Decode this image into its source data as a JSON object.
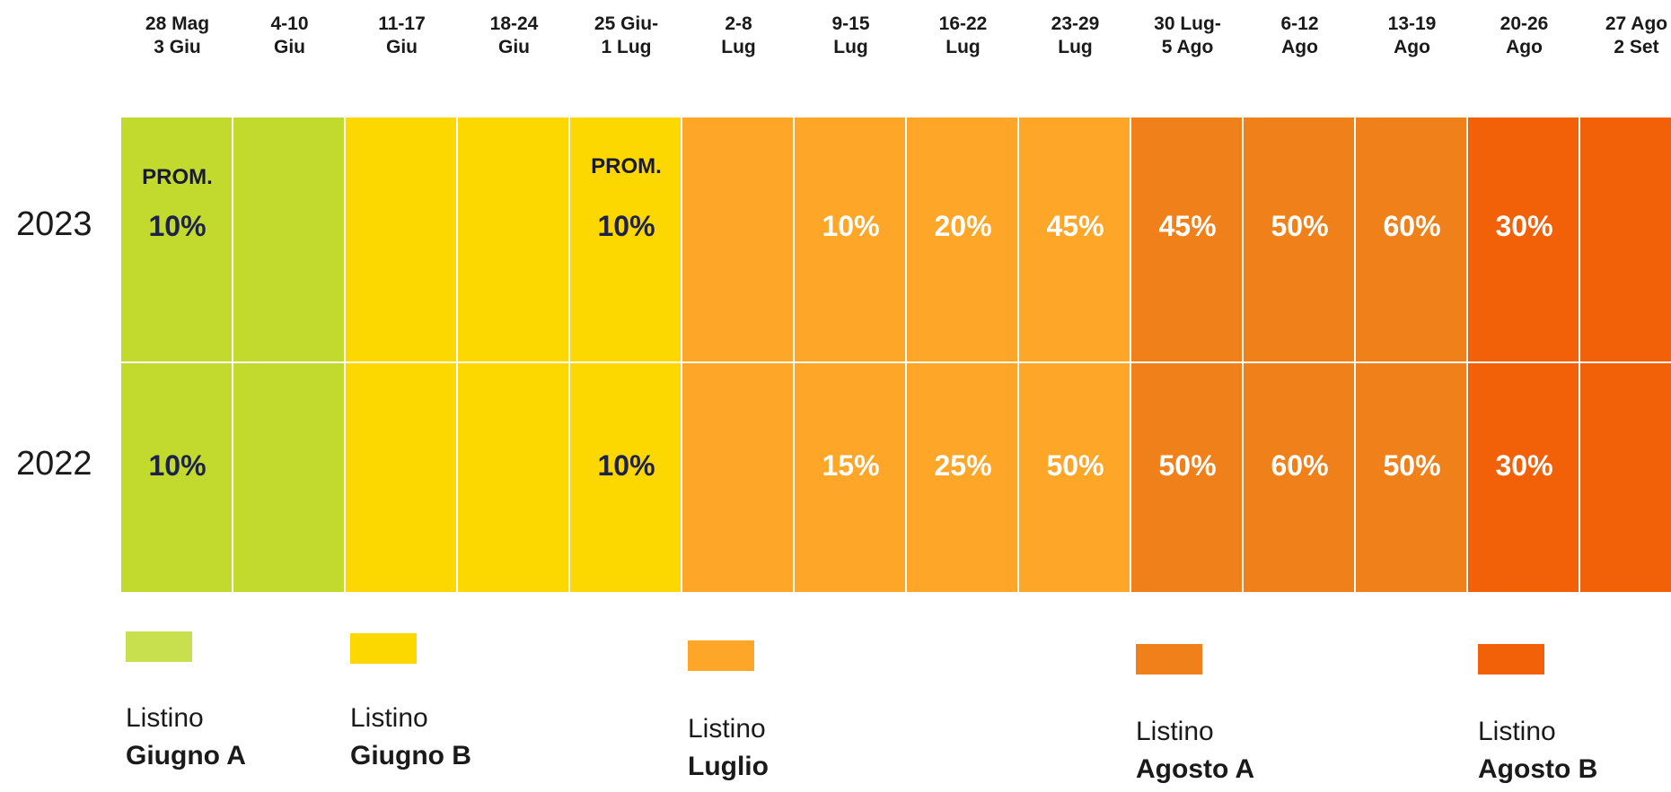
{
  "chart_data": {
    "type": "heatmap",
    "columns": [
      {
        "lines": [
          "28 Mag",
          "3 Giu"
        ],
        "listino": 0
      },
      {
        "lines": [
          "4-10",
          "Giu"
        ],
        "listino": 0
      },
      {
        "lines": [
          "11-17",
          "Giu"
        ],
        "listino": 1
      },
      {
        "lines": [
          "18-24",
          "Giu"
        ],
        "listino": 1
      },
      {
        "lines": [
          "25 Giu-",
          "1 Lug"
        ],
        "listino": 1
      },
      {
        "lines": [
          "2-8",
          "Lug"
        ],
        "listino": 2
      },
      {
        "lines": [
          "9-15",
          "Lug"
        ],
        "listino": 2
      },
      {
        "lines": [
          "16-22",
          "Lug"
        ],
        "listino": 2
      },
      {
        "lines": [
          "23-29",
          "Lug"
        ],
        "listino": 2
      },
      {
        "lines": [
          "30 Lug-",
          "5 Ago"
        ],
        "listino": 3
      },
      {
        "lines": [
          "6-12",
          "Ago"
        ],
        "listino": 3
      },
      {
        "lines": [
          "13-19",
          "Ago"
        ],
        "listino": 3
      },
      {
        "lines": [
          "20-26",
          "Ago"
        ],
        "listino": 4
      },
      {
        "lines": [
          "27 Ago",
          "2 Set"
        ],
        "listino": 4
      }
    ],
    "rows": [
      {
        "year": "2023",
        "values": [
          "10%",
          "",
          "",
          "",
          "10%",
          "",
          "10%",
          "20%",
          "45%",
          "45%",
          "50%",
          "60%",
          "30%",
          ""
        ],
        "prom_label": "PROM.",
        "prom_columns": [
          0,
          4
        ]
      },
      {
        "year": "2022",
        "values": [
          "10%",
          "",
          "",
          "",
          "10%",
          "",
          "15%",
          "25%",
          "50%",
          "50%",
          "60%",
          "50%",
          "30%",
          ""
        ],
        "prom_label": "",
        "prom_columns": []
      }
    ],
    "legend": [
      {
        "prefix": "Listino",
        "name": "Giugno A",
        "color": "#c2da2e",
        "swatch": "#c8e04e"
      },
      {
        "prefix": "Listino",
        "name": "Giugno B",
        "color": "#fdd800",
        "swatch": "#fdd800"
      },
      {
        "prefix": "Listino",
        "name": "Luglio",
        "color": "#fda627",
        "swatch": "#fda627"
      },
      {
        "prefix": "Listino",
        "name": "Agosto A",
        "color": "#f0801a",
        "swatch": "#f0801a"
      },
      {
        "prefix": "Listino",
        "name": "Agosto B",
        "color": "#f26107",
        "swatch": "#f26107"
      }
    ],
    "dark_text_color": "#1e2148",
    "light_text_color": "#ffffff"
  }
}
